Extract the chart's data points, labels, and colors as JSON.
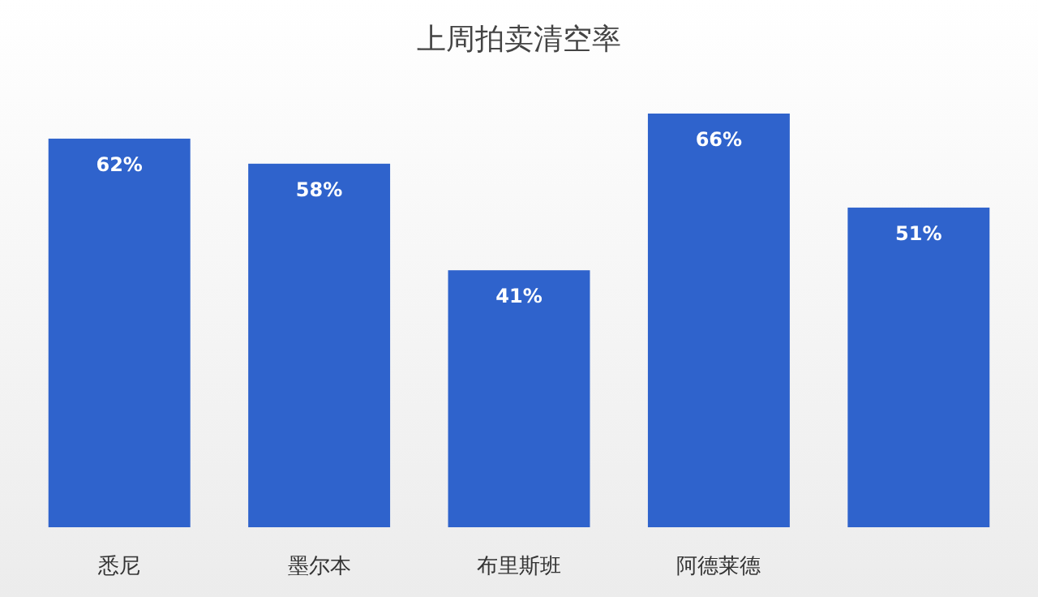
{
  "chart_data": {
    "type": "bar",
    "title": "上周拍卖清空率",
    "categories": [
      "悉尼",
      "墨尔本",
      "布里斯班",
      "阿德莱德",
      null
    ],
    "values": [
      62,
      58,
      41,
      66,
      51
    ],
    "value_labels": [
      "62%",
      "58%",
      "41%",
      "66%",
      "51%"
    ],
    "color": "#2f63cc"
  }
}
